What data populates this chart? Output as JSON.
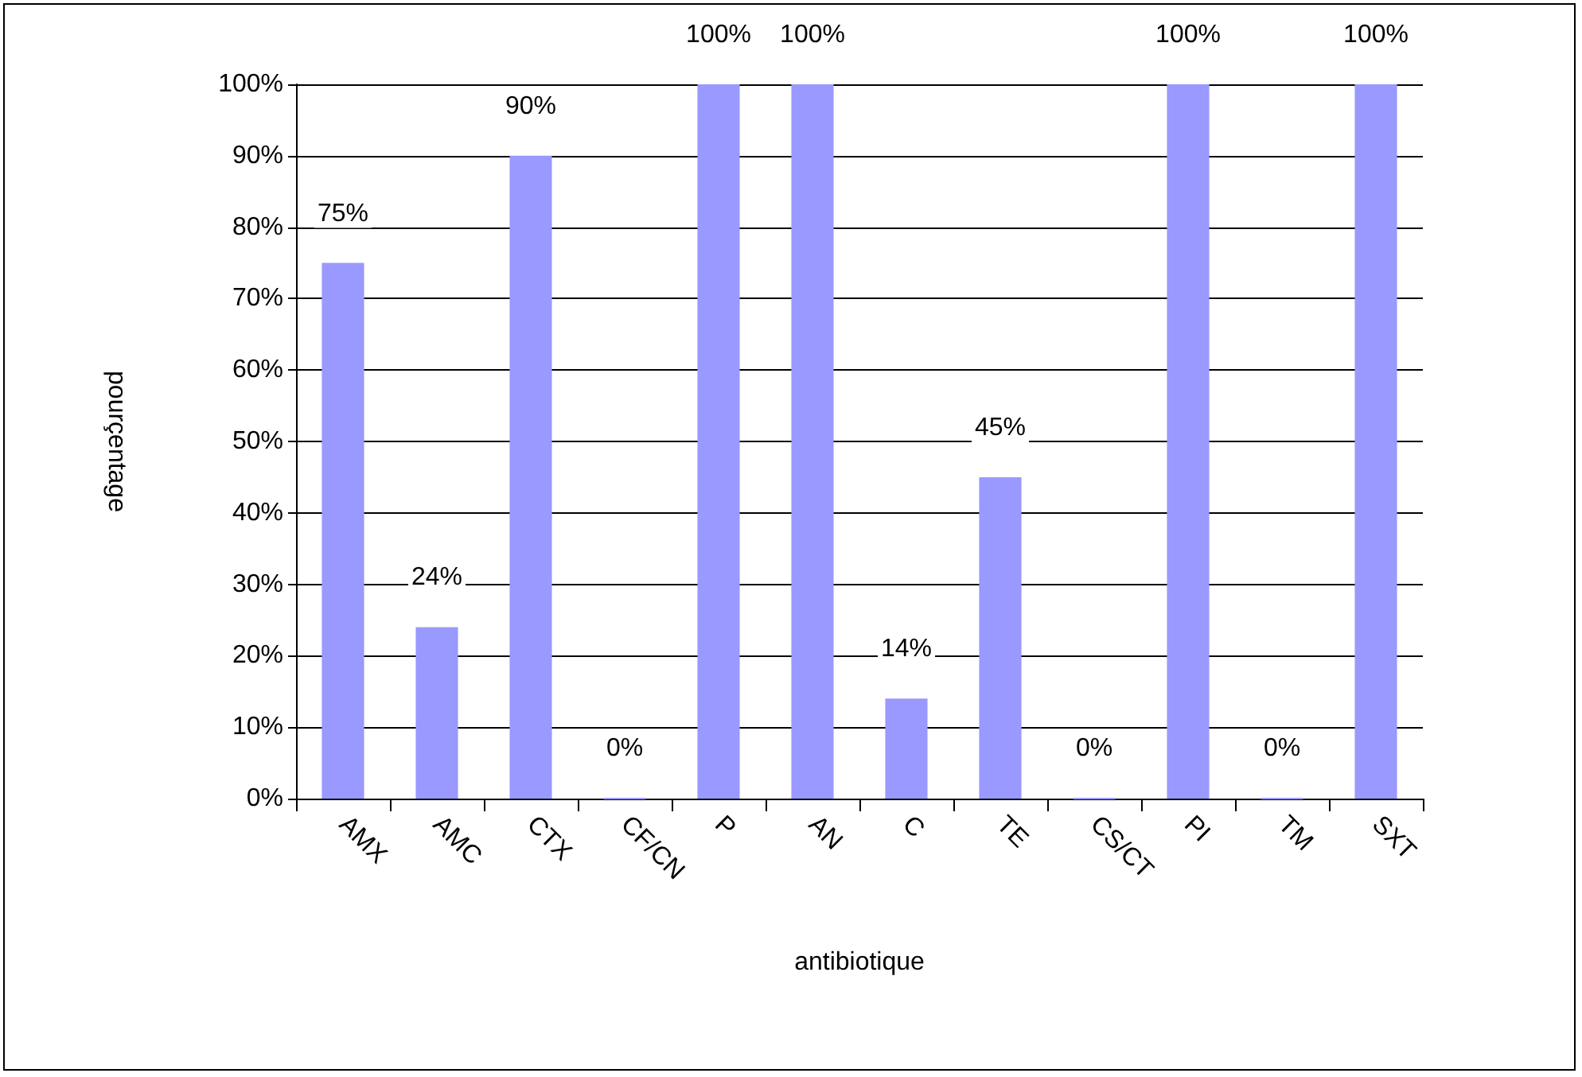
{
  "chart_data": {
    "type": "bar",
    "xlabel": "antibiotique",
    "ylabel": "pourçentage",
    "categories": [
      "AMX",
      "AMC",
      "CTX",
      "CF/CN",
      "P",
      "AN",
      "C",
      "TE",
      "CS/CT",
      "PI",
      "TM",
      "SXT"
    ],
    "values": [
      75,
      24,
      90,
      0,
      100,
      100,
      14,
      45,
      0,
      100,
      0,
      100
    ],
    "value_labels": [
      "75%",
      "24%",
      "90%",
      "0%",
      "100%",
      "100%",
      "14%",
      "45%",
      "0%",
      "100%",
      "0%",
      "100%"
    ],
    "color": "#9999ff",
    "ylim": [
      0,
      100
    ],
    "yticks": [
      {
        "value": 0,
        "label": "0%"
      },
      {
        "value": 10,
        "label": "10%"
      },
      {
        "value": 20,
        "label": "20%"
      },
      {
        "value": 30,
        "label": "30%"
      },
      {
        "value": 40,
        "label": "40%"
      },
      {
        "value": 50,
        "label": "50%"
      },
      {
        "value": 60,
        "label": "60%"
      },
      {
        "value": 70,
        "label": "70%"
      },
      {
        "value": 80,
        "label": "80%"
      },
      {
        "value": 90,
        "label": "90%"
      },
      {
        "value": 100,
        "label": "100%"
      }
    ],
    "grid": "y"
  }
}
